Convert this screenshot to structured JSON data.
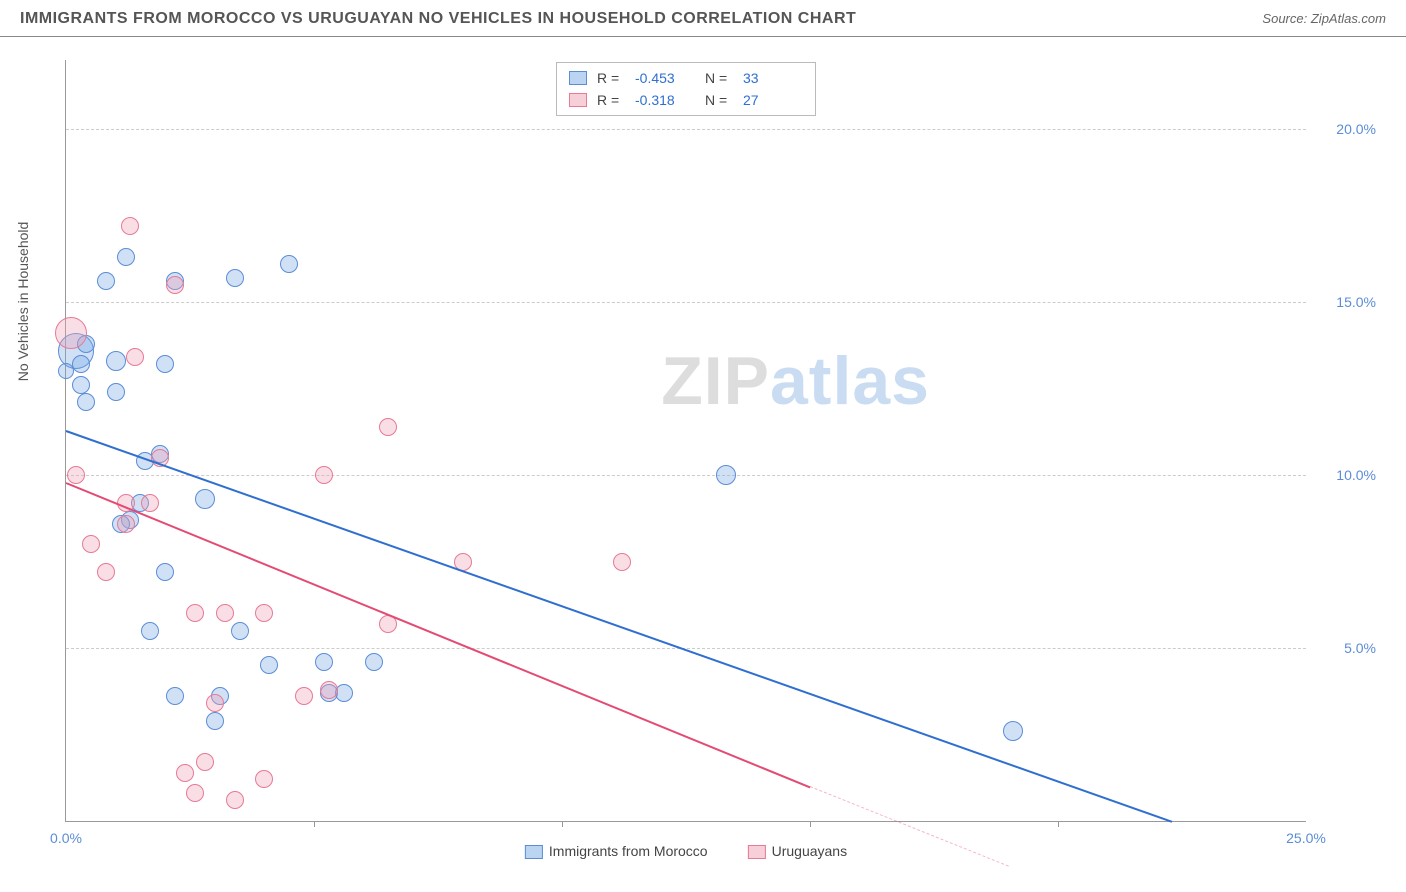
{
  "title": "IMMIGRANTS FROM MOROCCO VS URUGUAYAN NO VEHICLES IN HOUSEHOLD CORRELATION CHART",
  "source_label": "Source:",
  "source_value": "ZipAtlas.com",
  "y_axis_label": "No Vehicles in Household",
  "watermark_a": "ZIP",
  "watermark_b": "atlas",
  "chart": {
    "type": "scatter",
    "xlim": [
      0,
      25
    ],
    "ylim": [
      0,
      22
    ],
    "x_ticks": [
      0,
      25
    ],
    "x_tick_labels": [
      "0.0%",
      "25.0%"
    ],
    "x_minor_ticks": [
      5,
      10,
      15,
      20
    ],
    "y_ticks": [
      5,
      10,
      15,
      20
    ],
    "y_tick_labels": [
      "5.0%",
      "10.0%",
      "15.0%",
      "20.0%"
    ],
    "background_color": "#ffffff",
    "grid_color": "#cccccc",
    "colors": {
      "blue_stroke": "#5b8dd6",
      "blue_fill": "rgba(120,170,230,0.35)",
      "pink_stroke": "#e77a95",
      "pink_fill": "rgba(240,160,180,0.35)",
      "trend_blue": "#2f6fd0",
      "trend_pink": "#e34b74",
      "tick_label": "#5b8dd6",
      "title_color": "#555555"
    },
    "series": [
      {
        "name": "Immigrants from Morocco",
        "color_key": "blue",
        "r_value": "-0.453",
        "n_value": "33",
        "trend": {
          "x1": 0,
          "y1": 11.3,
          "x2": 22.3,
          "y2": 0
        },
        "points": [
          {
            "x": 0.2,
            "y": 13.6,
            "r": 18
          },
          {
            "x": 0.3,
            "y": 13.2,
            "r": 9
          },
          {
            "x": 0.3,
            "y": 12.6,
            "r": 9
          },
          {
            "x": 0.4,
            "y": 12.1,
            "r": 9
          },
          {
            "x": 0.4,
            "y": 13.8,
            "r": 9
          },
          {
            "x": 0.8,
            "y": 15.6,
            "r": 9
          },
          {
            "x": 1.2,
            "y": 16.3,
            "r": 9
          },
          {
            "x": 1.0,
            "y": 13.3,
            "r": 10
          },
          {
            "x": 1.0,
            "y": 12.4,
            "r": 9
          },
          {
            "x": 2.2,
            "y": 15.6,
            "r": 9
          },
          {
            "x": 3.4,
            "y": 15.7,
            "r": 9
          },
          {
            "x": 4.5,
            "y": 16.1,
            "r": 9
          },
          {
            "x": 1.6,
            "y": 10.4,
            "r": 9
          },
          {
            "x": 1.5,
            "y": 9.2,
            "r": 9
          },
          {
            "x": 1.3,
            "y": 8.7,
            "r": 9
          },
          {
            "x": 1.1,
            "y": 8.6,
            "r": 9
          },
          {
            "x": 2.0,
            "y": 7.2,
            "r": 9
          },
          {
            "x": 1.7,
            "y": 5.5,
            "r": 9
          },
          {
            "x": 2.2,
            "y": 3.6,
            "r": 9
          },
          {
            "x": 3.1,
            "y": 3.6,
            "r": 9
          },
          {
            "x": 3.0,
            "y": 2.9,
            "r": 9
          },
          {
            "x": 3.5,
            "y": 5.5,
            "r": 9
          },
          {
            "x": 4.1,
            "y": 4.5,
            "r": 9
          },
          {
            "x": 5.3,
            "y": 3.7,
            "r": 9
          },
          {
            "x": 5.2,
            "y": 4.6,
            "r": 9
          },
          {
            "x": 5.6,
            "y": 3.7,
            "r": 9
          },
          {
            "x": 6.2,
            "y": 4.6,
            "r": 9
          },
          {
            "x": 1.9,
            "y": 10.6,
            "r": 9
          },
          {
            "x": 2.8,
            "y": 9.3,
            "r": 10
          },
          {
            "x": 13.3,
            "y": 10.0,
            "r": 10
          },
          {
            "x": 19.1,
            "y": 2.6,
            "r": 10
          },
          {
            "x": 0.0,
            "y": 13.0,
            "r": 8
          },
          {
            "x": 2.0,
            "y": 13.2,
            "r": 9
          }
        ]
      },
      {
        "name": "Uruguayans",
        "color_key": "pink",
        "r_value": "-0.318",
        "n_value": "27",
        "trend": {
          "x1": 0,
          "y1": 9.8,
          "x2": 15.0,
          "y2": 1.0
        },
        "trend_dashed": {
          "x1": 15.0,
          "y1": 1.0,
          "x2": 19.0,
          "y2": -1.3
        },
        "points": [
          {
            "x": 0.1,
            "y": 14.1,
            "r": 16
          },
          {
            "x": 0.2,
            "y": 10.0,
            "r": 9
          },
          {
            "x": 0.5,
            "y": 8.0,
            "r": 9
          },
          {
            "x": 0.8,
            "y": 7.2,
            "r": 9
          },
          {
            "x": 1.3,
            "y": 17.2,
            "r": 9
          },
          {
            "x": 2.2,
            "y": 15.5,
            "r": 9
          },
          {
            "x": 1.4,
            "y": 13.4,
            "r": 9
          },
          {
            "x": 1.2,
            "y": 9.2,
            "r": 9
          },
          {
            "x": 1.2,
            "y": 8.6,
            "r": 9
          },
          {
            "x": 1.7,
            "y": 9.2,
            "r": 9
          },
          {
            "x": 1.9,
            "y": 10.5,
            "r": 9
          },
          {
            "x": 2.6,
            "y": 6.0,
            "r": 9
          },
          {
            "x": 3.2,
            "y": 6.0,
            "r": 9
          },
          {
            "x": 4.0,
            "y": 6.0,
            "r": 9
          },
          {
            "x": 5.2,
            "y": 10.0,
            "r": 9
          },
          {
            "x": 6.5,
            "y": 11.4,
            "r": 9
          },
          {
            "x": 4.8,
            "y": 3.6,
            "r": 9
          },
          {
            "x": 5.3,
            "y": 3.8,
            "r": 9
          },
          {
            "x": 6.5,
            "y": 5.7,
            "r": 9
          },
          {
            "x": 8.0,
            "y": 7.5,
            "r": 9
          },
          {
            "x": 11.2,
            "y": 7.5,
            "r": 9
          },
          {
            "x": 2.4,
            "y": 1.4,
            "r": 9
          },
          {
            "x": 2.8,
            "y": 1.7,
            "r": 9
          },
          {
            "x": 2.6,
            "y": 0.8,
            "r": 9
          },
          {
            "x": 3.4,
            "y": 0.6,
            "r": 9
          },
          {
            "x": 3.0,
            "y": 3.4,
            "r": 9
          },
          {
            "x": 4.0,
            "y": 1.2,
            "r": 9
          }
        ]
      }
    ],
    "legend_top": {
      "r_label": "R =",
      "n_label": "N ="
    },
    "legend_bottom": [
      {
        "label": "Immigrants from Morocco",
        "swatch": "blue"
      },
      {
        "label": "Uruguayans",
        "swatch": "pink"
      }
    ]
  }
}
